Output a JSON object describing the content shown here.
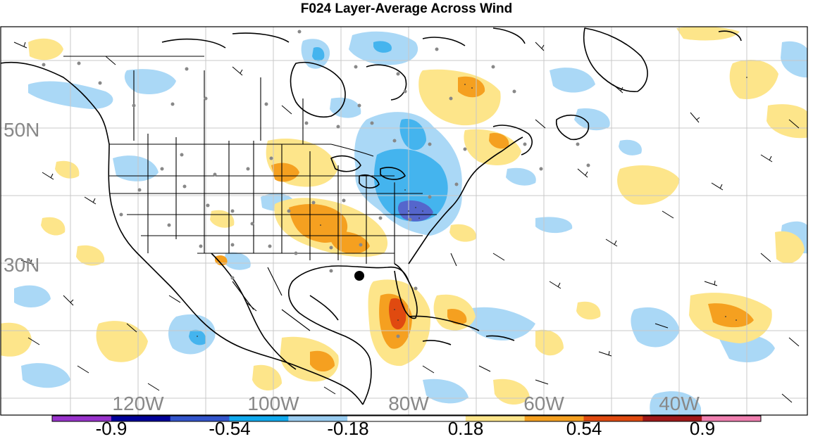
{
  "title": "F024 Layer-Average Across Wind",
  "lat_labels": [
    "50N",
    "30N"
  ],
  "lon_labels": [
    "120W",
    "100W",
    "80W",
    "60W",
    "40W"
  ],
  "colorbar": {
    "labels": [
      "-0.9",
      "-0.54",
      "-0.18",
      "0.18",
      "0.54",
      "0.9"
    ],
    "colors": [
      "#9933cc",
      "#000099",
      "#3355cc",
      "#11aaee",
      "#99ccf0",
      "#ffffff",
      "#ffffff",
      "#fde58a",
      "#f5a020",
      "#e04a10",
      "#a01818",
      "#f080b0"
    ]
  },
  "palette": {
    "light_blue": "#aad8f6",
    "mid_blue": "#44b4ee",
    "deep_blue": "#5566cc",
    "light_yellow": "#fde58a",
    "orange": "#f5a020",
    "red_orange": "#e04a10",
    "grid": "#c8c8c8",
    "station_dot": "#888888"
  },
  "marker_icon": "center-dot"
}
